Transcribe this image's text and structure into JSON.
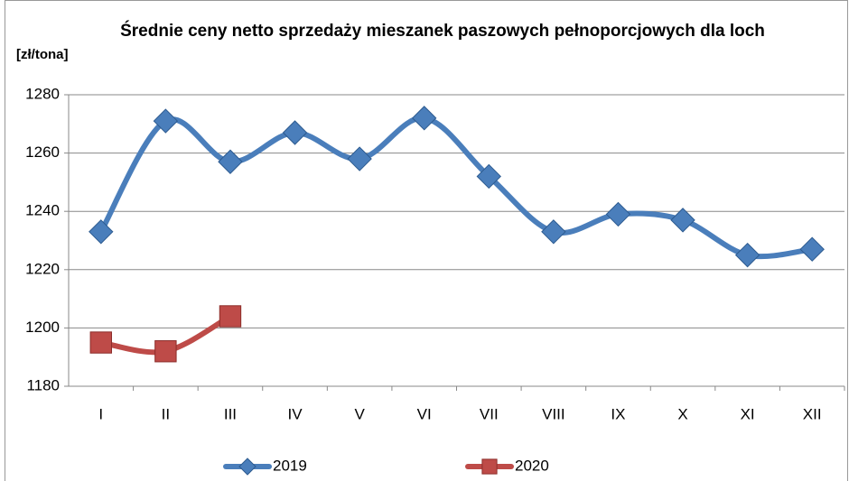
{
  "chart_data": {
    "type": "line",
    "title": "Średnie ceny netto sprzedaży mieszanek paszowych pełnoporcjowych dla loch",
    "y_axis_label": "[zł/tona]",
    "categories": [
      "I",
      "II",
      "III",
      "IV",
      "V",
      "VI",
      "VII",
      "VIII",
      "IX",
      "X",
      "XI",
      "XII"
    ],
    "series": [
      {
        "name": "2019",
        "color": "#4a7ebb",
        "marker": "diamond",
        "values": [
          1233,
          1271,
          1257,
          1267,
          1258,
          1272,
          1252,
          1233,
          1239,
          1237,
          1225,
          1227
        ]
      },
      {
        "name": "2020",
        "color": "#be4b48",
        "marker": "square",
        "values": [
          1195,
          1192,
          1204,
          null,
          null,
          null,
          null,
          null,
          null,
          null,
          null,
          null
        ]
      }
    ],
    "ylim": [
      1180,
      1280
    ],
    "yticks": [
      1180,
      1200,
      1220,
      1240,
      1260,
      1280
    ],
    "grid": true,
    "legend": "bottom"
  }
}
